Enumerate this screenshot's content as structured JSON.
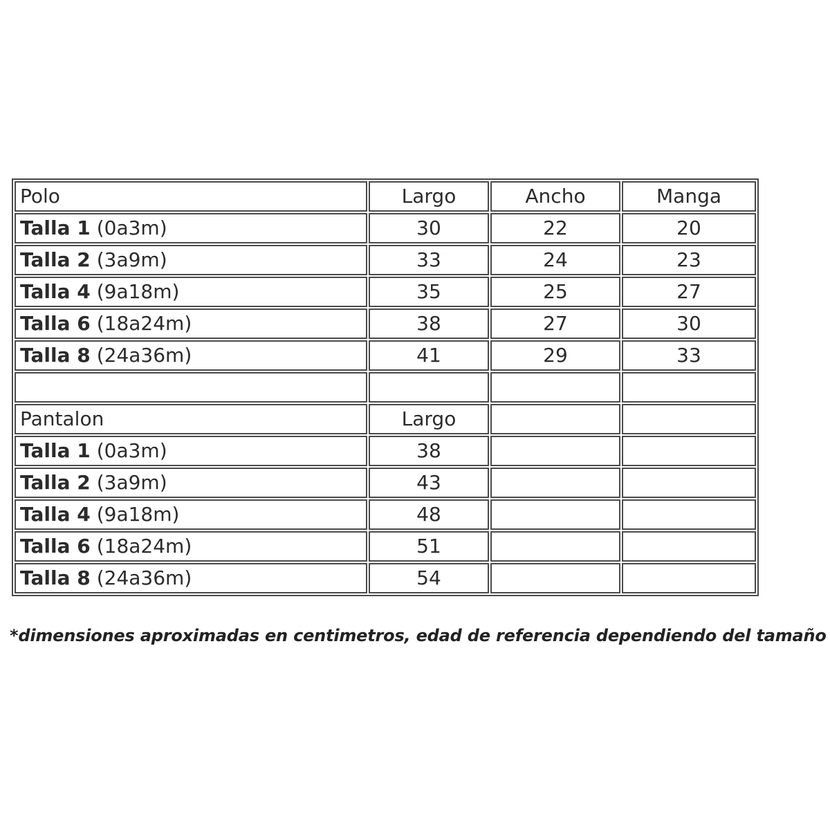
{
  "colors": {
    "background": "#ffffff",
    "border": "#4a4a4a",
    "text": "#2b2b2b"
  },
  "polo": {
    "title": "Polo",
    "columns": {
      "largo": "Largo",
      "ancho": "Ancho",
      "manga": "Manga"
    },
    "rows": [
      {
        "talla": "Talla 1",
        "age": "(0a3m)",
        "largo": "30",
        "ancho": "22",
        "manga": "20"
      },
      {
        "talla": "Talla 2",
        "age": "(3a9m)",
        "largo": "33",
        "ancho": "24",
        "manga": "23"
      },
      {
        "talla": "Talla 4",
        "age": "(9a18m)",
        "largo": "35",
        "ancho": "25",
        "manga": "27"
      },
      {
        "talla": "Talla 6",
        "age": "(18a24m)",
        "largo": "38",
        "ancho": "27",
        "manga": "30"
      },
      {
        "talla": "Talla 8",
        "age": "(24a36m)",
        "largo": "41",
        "ancho": "29",
        "manga": "33"
      }
    ]
  },
  "pantalon": {
    "title": "Pantalon",
    "columns": {
      "largo": "Largo"
    },
    "rows": [
      {
        "talla": "Talla 1",
        "age": "(0a3m)",
        "largo": "38"
      },
      {
        "talla": "Talla 2",
        "age": "(3a9m)",
        "largo": "43"
      },
      {
        "talla": "Talla 4",
        "age": "(9a18m)",
        "largo": "48"
      },
      {
        "talla": "Talla 6",
        "age": "(18a24m)",
        "largo": "51"
      },
      {
        "talla": "Talla 8",
        "age": "(24a36m)",
        "largo": "54"
      }
    ]
  },
  "footnote": "*dimensiones aproximadas en centimetros, edad de referencia dependiendo del tamaño del bebé."
}
